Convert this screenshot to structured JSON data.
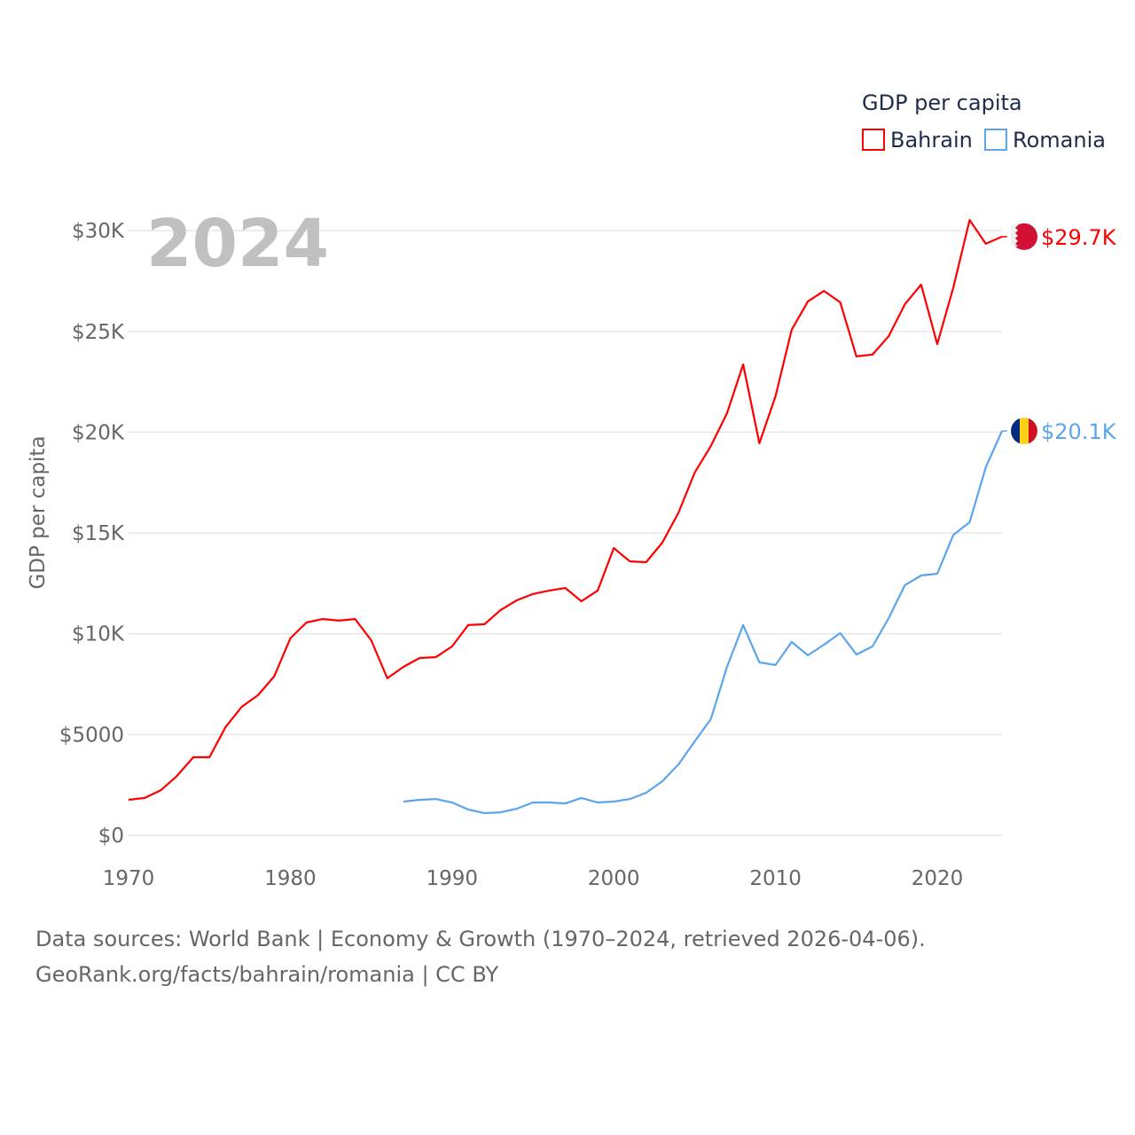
{
  "chart_data": {
    "type": "line",
    "year_label": "2024",
    "ylabel": "GDP per capita",
    "legend": {
      "title": "GDP per capita",
      "placement": "top-right",
      "entries": [
        "Bahrain",
        "Romania"
      ]
    },
    "ylim": [
      0,
      30000
    ],
    "xlim": [
      1970,
      2024
    ],
    "y_ticks": [
      {
        "v": 0,
        "label": "$0"
      },
      {
        "v": 5000,
        "label": "$5000"
      },
      {
        "v": 10000,
        "label": "$10K"
      },
      {
        "v": 15000,
        "label": "$15K"
      },
      {
        "v": 20000,
        "label": "$20K"
      },
      {
        "v": 25000,
        "label": "$25K"
      },
      {
        "v": 30000,
        "label": "$30K"
      }
    ],
    "x_ticks": [
      {
        "v": 1970,
        "label": "1970"
      },
      {
        "v": 1980,
        "label": "1980"
      },
      {
        "v": 1990,
        "label": "1990"
      },
      {
        "v": 2000,
        "label": "2000"
      },
      {
        "v": 2010,
        "label": "2010"
      },
      {
        "v": 2020,
        "label": "2020"
      }
    ],
    "grid": true,
    "series": [
      {
        "name": "Bahrain",
        "color": "#ff0000",
        "end_label": "$29.7K",
        "start_year": 1970,
        "values": [
          1760,
          1850,
          2240,
          2950,
          3870,
          3870,
          5370,
          6380,
          6950,
          7880,
          9770,
          10560,
          10730,
          10650,
          10730,
          9680,
          7790,
          8360,
          8800,
          8840,
          9370,
          10430,
          10470,
          11170,
          11660,
          11970,
          12140,
          12270,
          11610,
          12140,
          14250,
          13590,
          13550,
          14520,
          16010,
          17990,
          19310,
          20940,
          23360,
          19450,
          21780,
          25080,
          26490,
          27010,
          26440,
          23760,
          23850,
          24770,
          26350,
          27320,
          24370,
          27190,
          30530,
          29350,
          29700
        ]
      },
      {
        "name": "Romania",
        "color": "#5aa5ec",
        "end_label": "$20.1K",
        "start_year": 1987,
        "values": [
          1670,
          1760,
          1800,
          1630,
          1280,
          1100,
          1140,
          1320,
          1630,
          1630,
          1580,
          1850,
          1630,
          1670,
          1800,
          2110,
          2680,
          3520,
          4660,
          5760,
          8360,
          10430,
          8580,
          8450,
          9590,
          8930,
          9460,
          10030,
          8970,
          9370,
          10780,
          12410,
          12890,
          12980,
          14910,
          15530,
          18260,
          20060
        ]
      }
    ]
  },
  "footer": {
    "line1": "Data sources: World Bank | Economy & Growth (1970–2024, retrieved 2026-04-06).",
    "line2": "GeoRank.org/facts/bahrain/romania | CC BY"
  }
}
